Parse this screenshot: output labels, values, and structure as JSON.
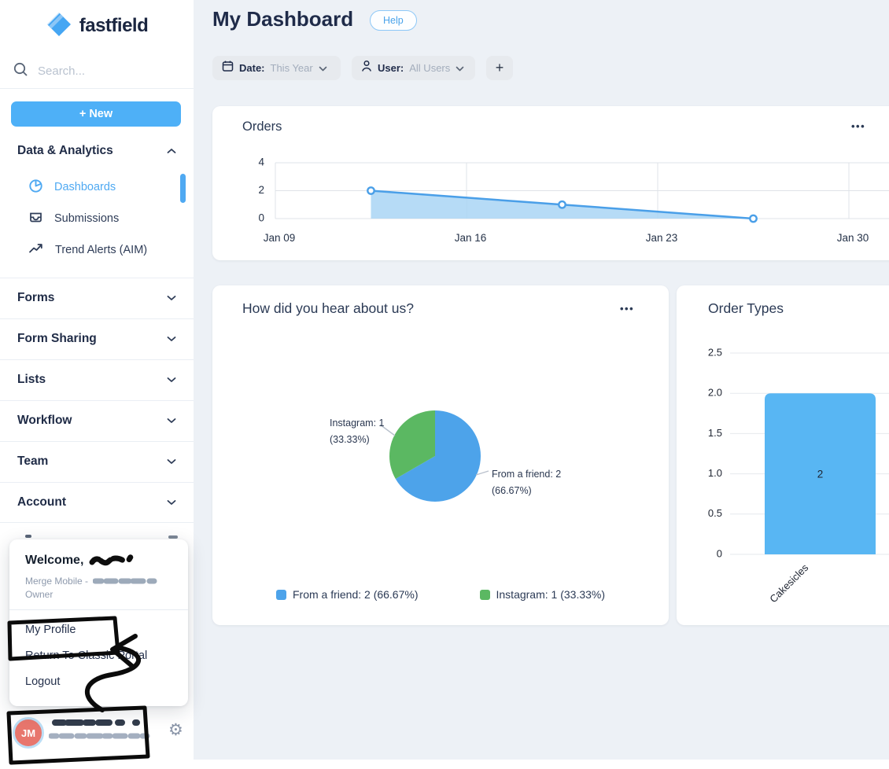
{
  "brand": {
    "name": "fastfield"
  },
  "sidebar": {
    "search_placeholder": "Search...",
    "new_button_label": "+ New",
    "analytics": {
      "label": "Data & Analytics",
      "items": [
        {
          "label": "Dashboards",
          "icon": "pie-chart-icon",
          "active": true
        },
        {
          "label": "Submissions",
          "icon": "inbox-icon",
          "active": false
        },
        {
          "label": "Trend Alerts (AIM)",
          "icon": "trend-icon",
          "active": false
        }
      ]
    },
    "sections": [
      {
        "label": "Forms"
      },
      {
        "label": "Form Sharing"
      },
      {
        "label": "Lists"
      },
      {
        "label": "Workflow"
      },
      {
        "label": "Team"
      },
      {
        "label": "Account"
      }
    ]
  },
  "user_menu": {
    "welcome_prefix": "Welcome,",
    "name_redacted": true,
    "org_prefix": "Merge Mobile -",
    "org_redacted": true,
    "role": "Owner",
    "items": [
      {
        "label": "My Profile"
      },
      {
        "label": "Return To Classic Portal"
      },
      {
        "label": "Logout"
      }
    ]
  },
  "profile_bar": {
    "avatar_initials": "JM",
    "avatar_color": "#e8766d",
    "name_redacted": true
  },
  "header": {
    "title": "My Dashboard",
    "help_label": "Help"
  },
  "filters": {
    "date_label": "Date:",
    "date_value": "This Year",
    "user_label": "User:",
    "user_value": "All Users",
    "add_label": "+"
  },
  "cards": {
    "orders": {
      "title": "Orders"
    },
    "hear_about": {
      "title": "How did you hear about us?"
    },
    "order_types": {
      "title": "Order Types"
    }
  },
  "icons": {
    "ellipsis_glyph": "•••",
    "gear_glyph": "⚙"
  },
  "colors": {
    "accent_blue": "#4eb0f7",
    "active_item_blue": "#4fa9f2",
    "main_bg": "#edf1f6",
    "navy_text": "#1f2b49"
  },
  "chart_data": [
    {
      "id": "orders",
      "type": "area",
      "title": "Orders",
      "x_ticks": [
        "Jan 09",
        "Jan 16",
        "Jan 23",
        "Jan 30"
      ],
      "y_ticks": [
        0,
        2,
        4
      ],
      "ylim": [
        0,
        4
      ],
      "points": [
        {
          "xi": 0.5,
          "y": 2
        },
        {
          "xi": 1.5,
          "y": 1
        },
        {
          "xi": 2.5,
          "y": 0
        }
      ],
      "line_color": "#4a9fe8",
      "fill_color": "#a9d5f4",
      "grid": true,
      "point_style": "hollow-circle"
    },
    {
      "id": "hear_about",
      "type": "pie",
      "title": "How did you hear about us?",
      "start_angle": "top",
      "direction": "clockwise",
      "legend_position": "bottom",
      "slices": [
        {
          "label": "From a friend",
          "value": 2,
          "pct": "66.67%",
          "color": "#4da3ea"
        },
        {
          "label": "Instagram",
          "value": 1,
          "pct": "33.33%",
          "color": "#5bb862"
        }
      ]
    },
    {
      "id": "order_types",
      "type": "bar",
      "title": "Order Types",
      "categories": [
        "Cakesicles"
      ],
      "values": [
        2
      ],
      "value_labels": [
        "2"
      ],
      "y_ticks": [
        0,
        0.5,
        1.0,
        1.5,
        2.0,
        2.5
      ],
      "ylim": [
        0,
        2.5
      ],
      "bar_color": "#58b6f3",
      "grid": true
    }
  ]
}
